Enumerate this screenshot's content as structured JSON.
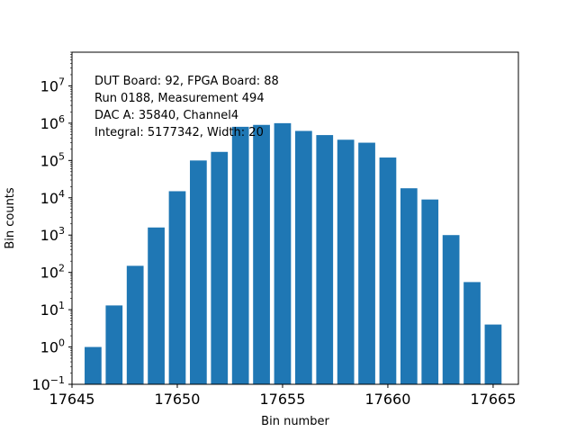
{
  "chart_data": {
    "type": "bar",
    "title": "",
    "xlabel": "Bin number",
    "ylabel": "Bin counts",
    "y_scale": "log",
    "ylim": [
      0.1,
      80000000
    ],
    "xlim": [
      17645.0,
      17666.2
    ],
    "x_ticks": [
      17645,
      17650,
      17655,
      17660,
      17665
    ],
    "y_tick_exponents": [
      -1,
      0,
      1,
      2,
      3,
      4,
      5,
      6,
      7
    ],
    "grid": false,
    "bar_color": "#1f77b4",
    "x": [
      17646,
      17647,
      17648,
      17649,
      17650,
      17651,
      17652,
      17653,
      17654,
      17655,
      17656,
      17657,
      17658,
      17659,
      17660,
      17661,
      17662,
      17663,
      17664,
      17665
    ],
    "values": [
      1,
      13,
      150,
      1600,
      15000,
      100000,
      170000,
      800000,
      900000,
      1000000,
      620000,
      480000,
      360000,
      300000,
      120000,
      18000,
      9000,
      1000,
      55,
      4
    ],
    "annotations": [
      "DUT Board: 92, FPGA Board: 88",
      "Run 0188, Measurement 494",
      "DAC A: 35840, Channel4",
      "Integral: 5177342, Width: 20"
    ]
  }
}
